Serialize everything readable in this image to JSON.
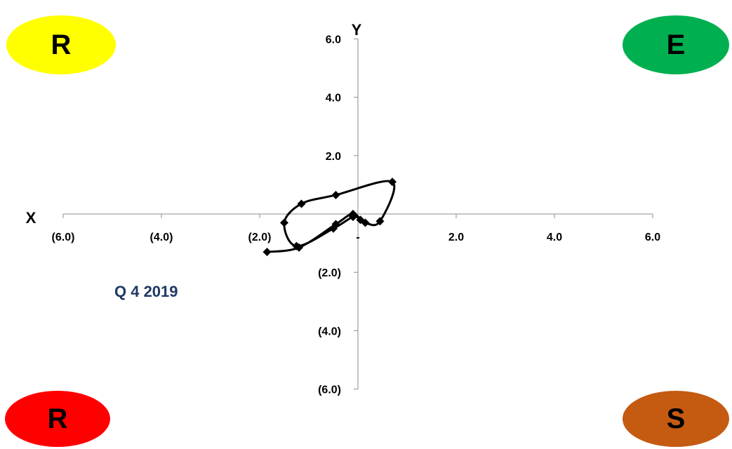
{
  "quadrants": {
    "top_left": {
      "label": "R",
      "color": "#ffff00"
    },
    "top_right": {
      "label": "E",
      "color": "#00b050"
    },
    "bottom_left": {
      "label": "R",
      "color": "#ff0000"
    },
    "bottom_right": {
      "label": "S",
      "color": "#c55a11"
    }
  },
  "chart_data": {
    "type": "line",
    "series": [
      {
        "values": [
          [
            -1.85,
            -1.3
          ],
          [
            -1.2,
            -1.15
          ],
          [
            -0.45,
            -0.35
          ],
          [
            -0.1,
            0.0
          ],
          [
            0.15,
            -0.3
          ],
          [
            0.45,
            -0.25
          ],
          [
            0.7,
            1.1
          ],
          [
            -0.45,
            0.65
          ],
          [
            -1.15,
            0.35
          ],
          [
            -1.5,
            -0.3
          ],
          [
            -1.25,
            -1.1
          ],
          [
            -0.5,
            -0.5
          ],
          [
            -0.1,
            -0.1
          ],
          [
            0.05,
            -0.2
          ]
        ]
      }
    ],
    "xlabel": "X",
    "ylabel": "Y",
    "xlim": [
      -6,
      6
    ],
    "ylim": [
      -6,
      6
    ],
    "x_ticks": [
      {
        "value": -6,
        "label": "(6.0)"
      },
      {
        "value": -4,
        "label": "(4.0)"
      },
      {
        "value": -2,
        "label": "(2.0)"
      },
      {
        "value": 0,
        "label": "-"
      },
      {
        "value": 2,
        "label": "2.0"
      },
      {
        "value": 4,
        "label": "4.0"
      },
      {
        "value": 6,
        "label": "6.0"
      }
    ],
    "y_ticks": [
      {
        "value": 6,
        "label": "6.0"
      },
      {
        "value": 4,
        "label": "4.0"
      },
      {
        "value": 2,
        "label": "2.0"
      },
      {
        "value": 0,
        "label": "-"
      },
      {
        "value": -2,
        "label": "(2.0)"
      },
      {
        "value": -4,
        "label": "(4.0)"
      },
      {
        "value": -6,
        "label": "(6.0)"
      }
    ],
    "annotation": "Q 4 2019",
    "grid": false,
    "marker": "diamond",
    "line_color": "#000000"
  }
}
